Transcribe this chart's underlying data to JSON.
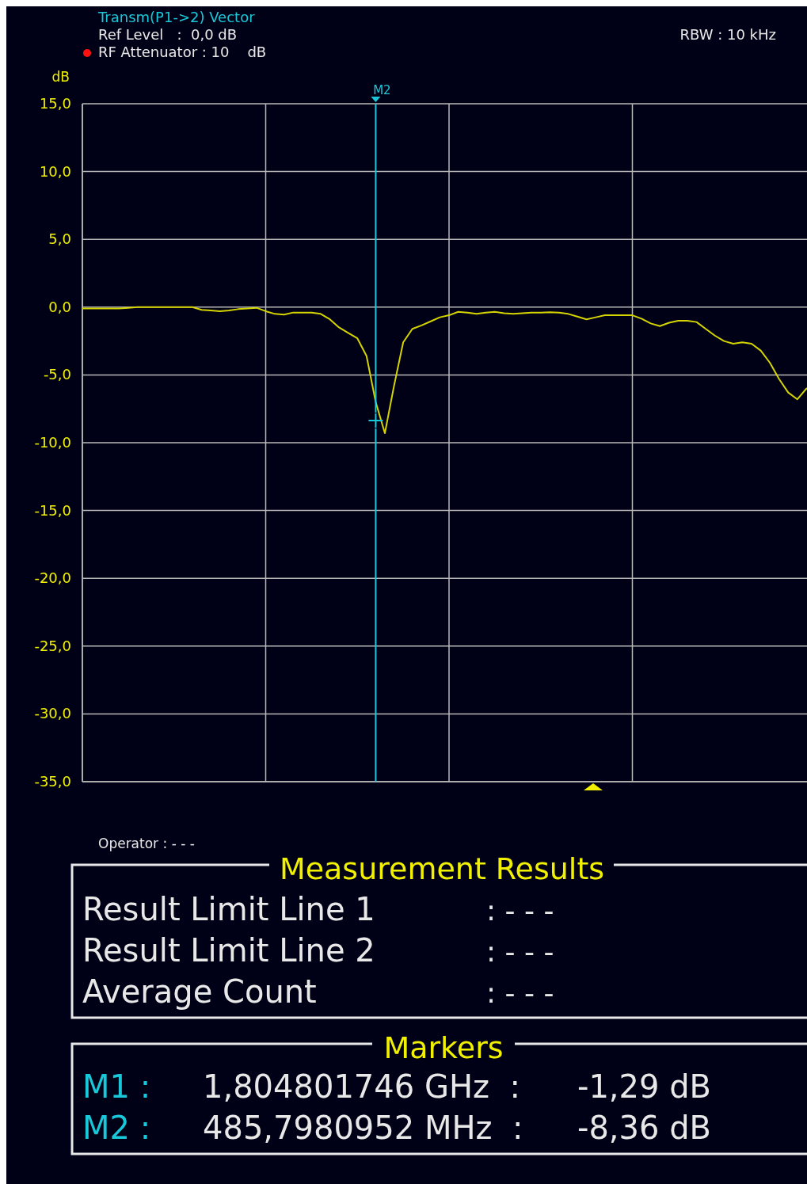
{
  "chart_data": {
    "type": "line",
    "title": "Transm(P1->2) Vector",
    "ylabel": "dB",
    "categories": [
      null,
      null,
      null,
      null,
      null,
      null,
      null,
      null,
      null,
      null,
      null,
      null,
      null,
      null,
      null,
      null,
      null,
      null,
      null,
      null,
      null,
      null,
      null,
      null,
      null,
      null,
      null,
      null,
      null,
      null,
      null,
      null,
      null,
      null,
      null,
      null,
      null,
      null,
      null,
      null,
      null,
      null,
      null,
      null,
      null,
      null,
      null,
      null,
      null,
      null,
      null,
      null,
      null,
      null,
      null,
      null,
      null,
      null,
      null,
      null,
      null,
      null,
      null,
      null,
      null,
      null,
      null,
      null,
      null,
      null,
      null,
      null,
      null,
      null,
      null,
      null,
      null,
      null,
      null,
      null
    ],
    "series": [
      {
        "color": "#d4d400",
        "values": [
          -0.1,
          -0.1,
          -0.1,
          -0.1,
          -0.1,
          -0.05,
          0,
          0,
          0,
          0,
          0,
          0,
          0,
          -0.2,
          -0.25,
          -0.3,
          -0.25,
          -0.15,
          -0.1,
          -0.05,
          -0.3,
          -0.5,
          -0.55,
          -0.4,
          -0.4,
          -0.4,
          -0.5,
          -0.9,
          -1.5,
          -1.9,
          -2.3,
          -3.6,
          -7.0,
          -9.3,
          -5.8,
          -2.6,
          -1.6,
          -1.35,
          -1.05,
          -0.75,
          -0.6,
          -0.35,
          -0.4,
          -0.5,
          -0.4,
          -0.35,
          -0.45,
          -0.5,
          -0.45,
          -0.4,
          -0.4,
          -0.37,
          -0.4,
          -0.5,
          -0.7,
          -0.9,
          -0.75,
          -0.6,
          -0.6,
          -0.6,
          -0.6,
          -0.85,
          -1.2,
          -1.4,
          -1.15,
          -1.0,
          -1.0,
          -1.1,
          -1.6,
          -2.1,
          -2.5,
          -2.7,
          -2.6,
          -2.7,
          -3.2,
          -4.1,
          -5.3,
          -6.3,
          -6.8,
          -6.0
        ]
      },
      {
        "name": "M2",
        "type": "scatter",
        "marker": "cross",
        "color": "#19c8d8",
        "values": [
          null,
          null,
          null,
          null,
          null,
          null,
          null,
          null,
          null,
          null,
          null,
          null,
          null,
          null,
          null,
          null,
          null,
          null,
          null,
          null,
          null,
          null,
          null,
          null,
          null,
          null,
          null,
          null,
          null,
          null,
          null,
          null,
          -8.36,
          null,
          null,
          null,
          null,
          null,
          null,
          null,
          null,
          null,
          null,
          null,
          null,
          null,
          null,
          null,
          null,
          null,
          null,
          null,
          null,
          null,
          null,
          null,
          null,
          null,
          null,
          null,
          null,
          null,
          null,
          null,
          null,
          null,
          null,
          null,
          null,
          null,
          null,
          null,
          null,
          null,
          null,
          null,
          null,
          null,
          null,
          null
        ]
      }
    ],
    "ylim": [
      -35,
      15
    ],
    "yticks": [
      {
        "value": 15,
        "label": "15,0"
      },
      {
        "value": 10,
        "label": "10,0"
      },
      {
        "value": 5,
        "label": "5,0"
      },
      {
        "value": 0,
        "label": "0,0"
      },
      {
        "value": -5,
        "label": "-5,0"
      },
      {
        "value": -10,
        "label": "-10,0"
      },
      {
        "value": -15,
        "label": "-15,0"
      },
      {
        "value": -20,
        "label": "-20,0"
      },
      {
        "value": -25,
        "label": "-25,0"
      },
      {
        "value": -30,
        "label": "-30,0"
      },
      {
        "value": -35,
        "label": "-35,0"
      }
    ],
    "tick_labels": "y",
    "grid": true,
    "line_style": "solid",
    "marker": "none",
    "annotations": [
      "Ref Level   :  0,0 dB",
      "RF Attenuator : 10    dB",
      "RBW : 10 kHz",
      "Operator : - - -",
      "Measurement Results",
      "Result Limit Line 1",
      ": - - -",
      "Result Limit Line 2",
      ": - - -",
      "Average Count",
      ": - - -",
      "Markers",
      "M1 :",
      "1,804801746 GHz  :",
      "-1,29 dB",
      "M2 :",
      "485,7980952 MHz  :",
      "-8,36 dB"
    ]
  }
}
